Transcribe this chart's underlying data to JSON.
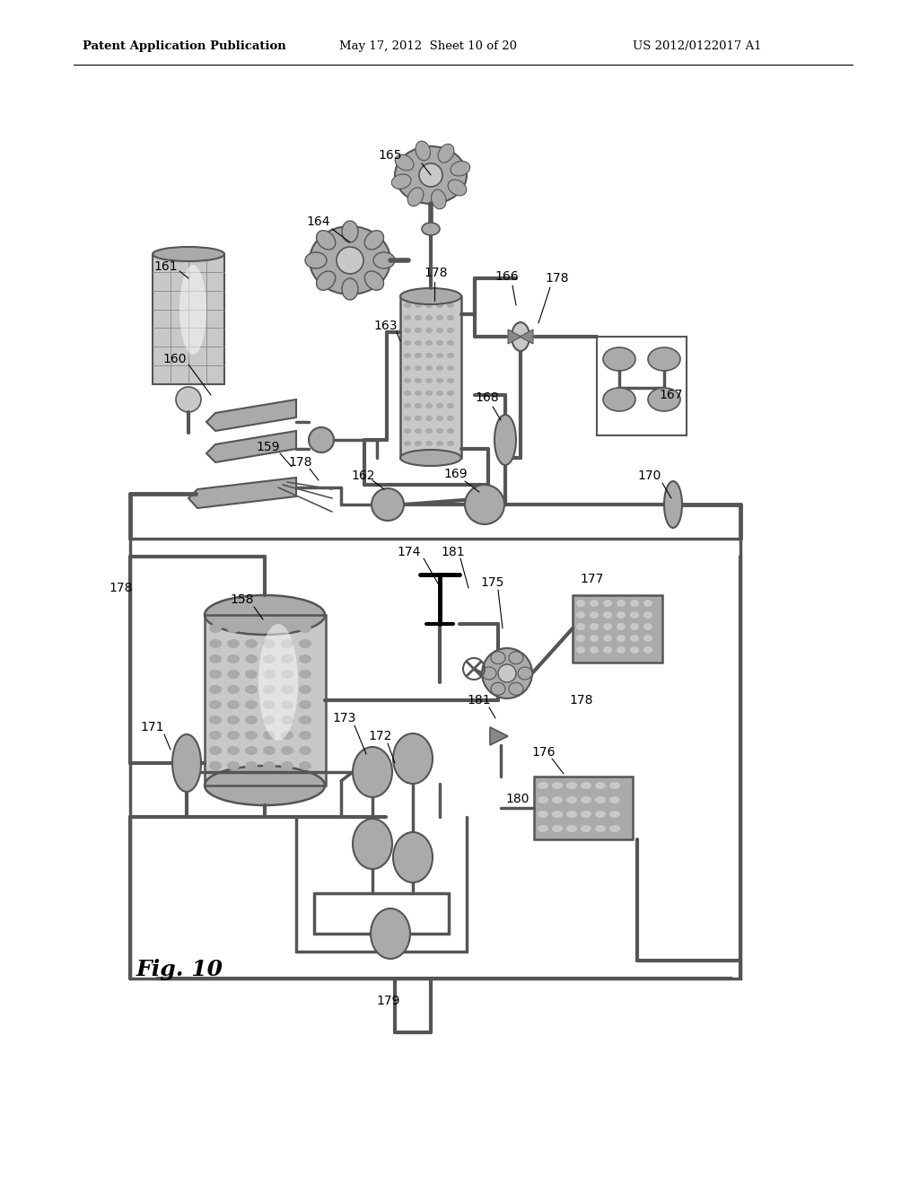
{
  "title_left": "Patent Application Publication",
  "title_mid": "May 17, 2012  Sheet 10 of 20",
  "title_right": "US 2012/0122017 A1",
  "fig_label": "Fig. 10",
  "bg_color": "#ffffff",
  "gray_light": "#c8c8c8",
  "gray_mid": "#aaaaaa",
  "gray_dark": "#888888",
  "gray_darker": "#555555",
  "line_color": "#444444",
  "text_color": "#000000"
}
